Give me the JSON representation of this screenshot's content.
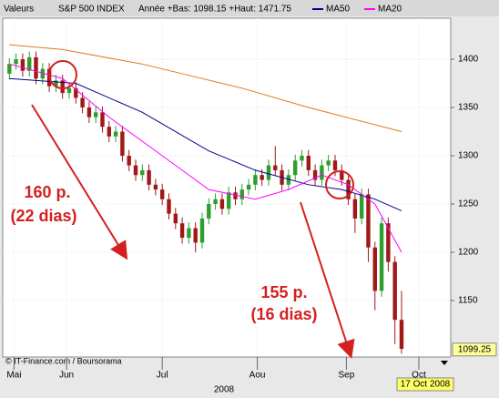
{
  "chart_data": {
    "type": "candlestick",
    "header": {
      "label": "Valeurs",
      "index": "S&P 500 INDEX",
      "range_text": "Année +Bas: 1098.15 +Haut: 1471.75"
    },
    "open": [
      1385,
      1395,
      1400,
      1388,
      1402,
      1380,
      1390,
      1372,
      1378,
      1365,
      1370,
      1360,
      1350,
      1340,
      1345,
      1330,
      1320,
      1325,
      1300,
      1290,
      1280,
      1285,
      1270,
      1265,
      1255,
      1240,
      1230,
      1215,
      1225,
      1210,
      1235,
      1250,
      1255,
      1245,
      1262,
      1255,
      1265,
      1270,
      1280,
      1275,
      1290,
      1285,
      1270,
      1280,
      1295,
      1300,
      1285,
      1275,
      1290,
      1295,
      1285,
      1275,
      1255,
      1235,
      1260,
      1205,
      1160,
      1230,
      1190,
      1130
    ],
    "high": [
      1401,
      1406,
      1406,
      1408,
      1408,
      1396,
      1396,
      1384,
      1384,
      1376,
      1376,
      1366,
      1356,
      1351,
      1351,
      1336,
      1331,
      1331,
      1306,
      1296,
      1291,
      1291,
      1276,
      1271,
      1261,
      1246,
      1236,
      1231,
      1231,
      1241,
      1256,
      1261,
      1261,
      1268,
      1268,
      1271,
      1276,
      1286,
      1286,
      1296,
      1310,
      1291,
      1286,
      1301,
      1306,
      1306,
      1291,
      1296,
      1301,
      1301,
      1291,
      1281,
      1261,
      1266,
      1266,
      1211,
      1236,
      1236,
      1196,
      1160
    ],
    "low": [
      1379,
      1389,
      1382,
      1382,
      1374,
      1374,
      1366,
      1366,
      1359,
      1359,
      1354,
      1344,
      1334,
      1334,
      1324,
      1314,
      1314,
      1294,
      1284,
      1274,
      1274,
      1264,
      1259,
      1249,
      1234,
      1224,
      1209,
      1209,
      1200,
      1204,
      1229,
      1244,
      1239,
      1239,
      1249,
      1249,
      1259,
      1264,
      1269,
      1269,
      1279,
      1264,
      1264,
      1274,
      1289,
      1279,
      1269,
      1269,
      1284,
      1279,
      1269,
      1249,
      1220,
      1229,
      1190,
      1140,
      1154,
      1180,
      1105,
      1095
    ],
    "close": [
      1395,
      1400,
      1388,
      1402,
      1380,
      1390,
      1372,
      1378,
      1365,
      1370,
      1360,
      1350,
      1340,
      1345,
      1330,
      1320,
      1325,
      1300,
      1290,
      1280,
      1285,
      1270,
      1265,
      1255,
      1240,
      1230,
      1215,
      1225,
      1210,
      1235,
      1250,
      1255,
      1245,
      1262,
      1255,
      1265,
      1270,
      1280,
      1275,
      1290,
      1285,
      1270,
      1280,
      1295,
      1300,
      1285,
      1275,
      1290,
      1295,
      1285,
      1275,
      1255,
      1235,
      1260,
      1205,
      1160,
      1230,
      1190,
      1130,
      1100
    ],
    "up_color": "#2e9e2e",
    "down_color": "#a01818",
    "series": [
      {
        "name": "MA50",
        "color": "#00008b",
        "x": [
          0,
          10,
          20,
          30,
          37,
          45,
          50,
          55,
          59
        ],
        "values": [
          1380,
          1375,
          1345,
          1305,
          1285,
          1270,
          1265,
          1255,
          1243
        ]
      },
      {
        "name": "MA20",
        "color": "#ff00ff",
        "x": [
          0,
          8,
          15,
          23,
          30,
          37,
          42,
          47,
          51,
          55,
          59
        ],
        "values": [
          1395,
          1380,
          1340,
          1300,
          1265,
          1255,
          1265,
          1280,
          1270,
          1250,
          1200
        ]
      }
    ],
    "extra_line": {
      "color": "#e07a1a",
      "x": [
        0,
        8,
        20,
        35,
        45,
        59
      ],
      "values": [
        1415,
        1410,
        1395,
        1370,
        1350,
        1325
      ]
    },
    "xlim": [
      -1,
      66.4
    ],
    "ylim": [
      1091.5,
      1453.8
    ],
    "yticks": [
      1150,
      1200,
      1250,
      1300,
      1350,
      1400
    ],
    "xticks": [
      {
        "value": 0.7,
        "label": "Mai"
      },
      {
        "value": 8.6,
        "label": "Jun"
      },
      {
        "value": 23,
        "label": "Jul"
      },
      {
        "value": 37.3,
        "label": "Aou"
      },
      {
        "value": 50.7,
        "label": "Sep"
      },
      {
        "value": 61.6,
        "label": "Oct"
      }
    ],
    "year_label": "2008",
    "last_price": 1099.25,
    "last_date": "17 Oct 2008",
    "source": "© IT-Finance.com / Boursorama",
    "annotations": [
      "160 p.",
      "(22 dias)",
      "155 p.",
      "(16 dias)"
    ],
    "grid": true
  }
}
